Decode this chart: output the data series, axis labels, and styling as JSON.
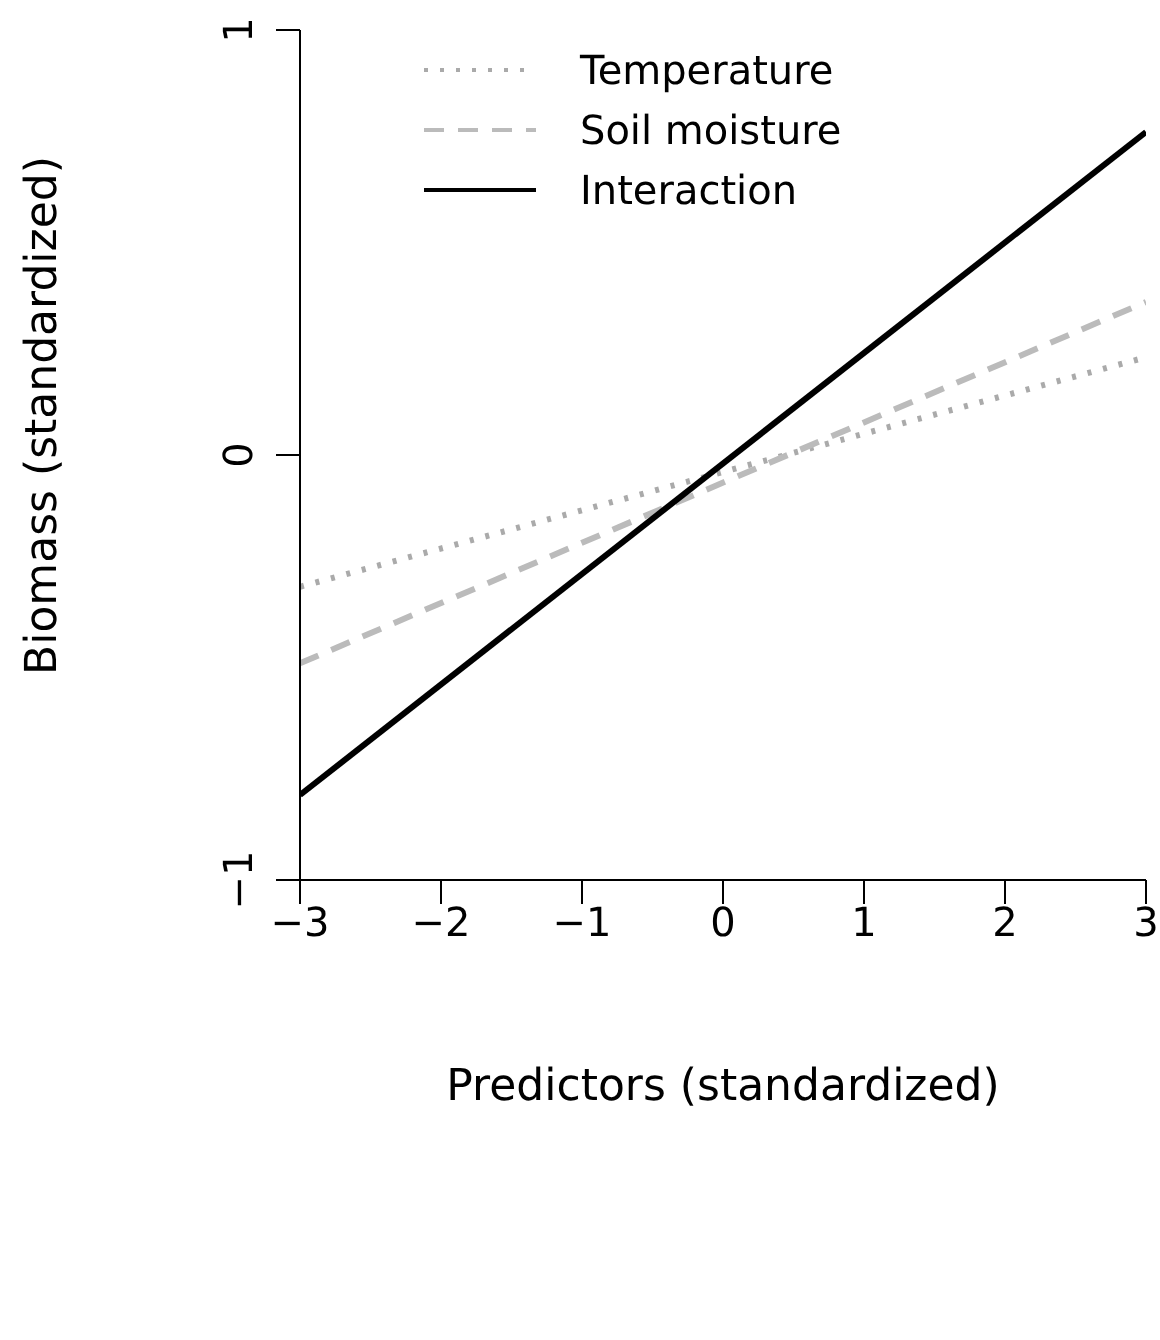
{
  "chart_data": {
    "type": "line",
    "xlabel": "Predictors (standardized)",
    "ylabel": "Biomass (standardized)",
    "x": [
      -3,
      3
    ],
    "series": [
      {
        "name": "Temperature",
        "color": "#aaaaaa",
        "values": [
          -0.31,
          0.23
        ],
        "line_style": "dotted"
      },
      {
        "name": "Soil moisture",
        "color": "#bbbbbb",
        "values": [
          -0.49,
          0.36
        ],
        "line_style": "dashed"
      },
      {
        "name": "Interaction",
        "color": "#000000",
        "values": [
          -0.8,
          0.76
        ],
        "line_style": "solid"
      }
    ],
    "xlim": [
      -3,
      3
    ],
    "xticks": [
      {
        "value": -3,
        "label": "−3"
      },
      {
        "value": -2,
        "label": "−2"
      },
      {
        "value": -1,
        "label": "−1"
      },
      0,
      1,
      2,
      3
    ],
    "ylim": [
      -1,
      1
    ],
    "yticks": [
      {
        "value": -1,
        "label": "−1"
      },
      0,
      1
    ],
    "grid": false,
    "legend": "top left",
    "marker": "none"
  }
}
